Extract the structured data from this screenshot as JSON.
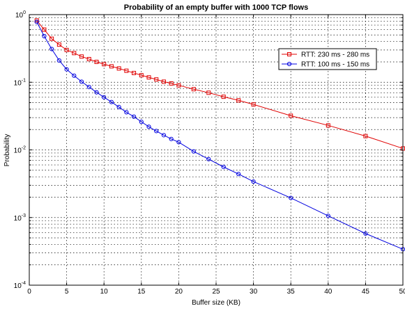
{
  "chart_data": {
    "type": "line",
    "title": "Probability of an empty buffer with 1000 TCP flows",
    "xlabel": "Buffer size (KB)",
    "ylabel": "Probability",
    "xlim": [
      0,
      50
    ],
    "ylim": [
      0.0001,
      1
    ],
    "yscale": "log",
    "grid": true,
    "legend_position": "top-right",
    "x_ticks": [
      0,
      5,
      10,
      15,
      20,
      25,
      30,
      35,
      40,
      45,
      50
    ],
    "x_tick_labels": [
      "0",
      "5",
      "10",
      "15",
      "20",
      "25",
      "30",
      "35",
      "40",
      "45",
      "50"
    ],
    "y_ticks": [
      0.0001,
      0.001,
      0.01,
      0.1,
      1
    ],
    "y_tick_labels": [
      {
        "base": "10",
        "exp": "-4"
      },
      {
        "base": "10",
        "exp": "-3"
      },
      {
        "base": "10",
        "exp": "-2"
      },
      {
        "base": "10",
        "exp": "-1"
      },
      {
        "base": "10",
        "exp": "0"
      }
    ],
    "series": [
      {
        "name": "RTT: 230 ms - 280 ms",
        "color": "#e00000",
        "marker": "square",
        "x": [
          1,
          2,
          3,
          4,
          5,
          6,
          7,
          8,
          9,
          10,
          11,
          12,
          13,
          14,
          15,
          16,
          17,
          18,
          19,
          20,
          22,
          24,
          26,
          28,
          30,
          35,
          40,
          45,
          50
        ],
        "y": [
          0.82,
          0.6,
          0.44,
          0.36,
          0.3,
          0.27,
          0.24,
          0.22,
          0.2,
          0.185,
          0.172,
          0.16,
          0.148,
          0.137,
          0.127,
          0.118,
          0.11,
          0.102,
          0.096,
          0.09,
          0.079,
          0.07,
          0.061,
          0.054,
          0.047,
          0.032,
          0.023,
          0.016,
          0.0105
        ]
      },
      {
        "name": "RTT: 100 ms - 150 ms",
        "color": "#0000e0",
        "marker": "circle",
        "x": [
          1,
          2,
          3,
          4,
          5,
          6,
          7,
          8,
          9,
          10,
          11,
          12,
          13,
          14,
          15,
          16,
          17,
          18,
          19,
          20,
          22,
          24,
          26,
          28,
          30,
          35,
          40,
          45,
          50
        ],
        "y": [
          0.78,
          0.48,
          0.31,
          0.21,
          0.155,
          0.125,
          0.102,
          0.085,
          0.071,
          0.06,
          0.051,
          0.043,
          0.036,
          0.031,
          0.026,
          0.022,
          0.019,
          0.0165,
          0.0145,
          0.013,
          0.0095,
          0.0073,
          0.0056,
          0.0044,
          0.0034,
          0.00195,
          0.00106,
          0.00058,
          0.00034
        ]
      }
    ]
  }
}
